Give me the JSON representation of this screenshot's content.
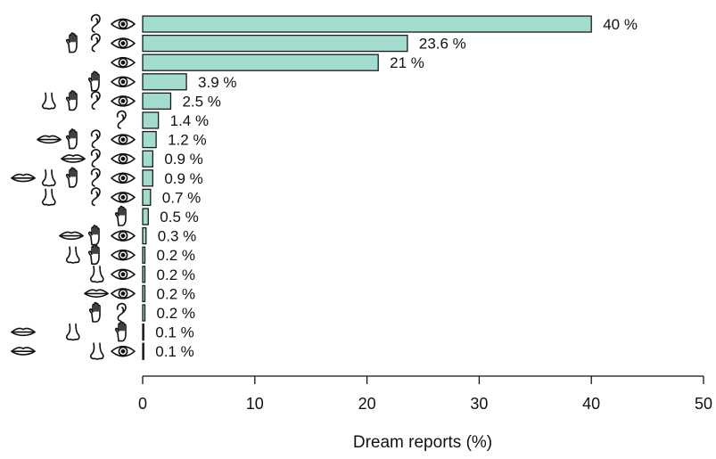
{
  "chart_data": {
    "type": "bar",
    "orientation": "horizontal",
    "xlabel": "Dream reports (%)",
    "xlim": [
      0,
      50
    ],
    "xticks": [
      0,
      10,
      20,
      30,
      40,
      50
    ],
    "bar_color": "#a1dccf",
    "categories": [
      {
        "senses": [
          "ear-icon",
          "eye-icon"
        ],
        "value": 40,
        "label": "40 %"
      },
      {
        "senses": [
          "hand-icon",
          "ear-icon",
          "eye-icon"
        ],
        "value": 23.6,
        "label": "23.6 %"
      },
      {
        "senses": [
          "eye-icon"
        ],
        "value": 21,
        "label": "21 %"
      },
      {
        "senses": [
          "hand-icon",
          "eye-icon"
        ],
        "value": 3.9,
        "label": "3.9 %"
      },
      {
        "senses": [
          "nose-icon",
          "hand-icon",
          "ear-icon",
          "eye-icon"
        ],
        "value": 2.5,
        "label": "2.5 %"
      },
      {
        "senses": [
          "ear-icon"
        ],
        "value": 1.4,
        "label": "1.4 %"
      },
      {
        "senses": [
          "mouth-icon",
          "hand-icon",
          "ear-icon",
          "eye-icon"
        ],
        "value": 1.2,
        "label": "1.2 %"
      },
      {
        "senses": [
          "mouth-icon",
          "ear-icon",
          "eye-icon"
        ],
        "value": 0.9,
        "label": "0.9 %"
      },
      {
        "senses": [
          "mouth-icon",
          "nose-icon",
          "hand-icon",
          "ear-icon",
          "eye-icon"
        ],
        "value": 0.9,
        "label": "0.9 %"
      },
      {
        "senses": [
          "nose-icon",
          "ear-icon",
          "eye-icon"
        ],
        "value": 0.7,
        "label": "0.7 %"
      },
      {
        "senses": [
          "hand-icon"
        ],
        "value": 0.5,
        "label": "0.5 %"
      },
      {
        "senses": [
          "mouth-icon",
          "hand-icon",
          "eye-icon"
        ],
        "value": 0.3,
        "label": "0.3 %"
      },
      {
        "senses": [
          "nose-icon",
          "hand-icon",
          "eye-icon"
        ],
        "value": 0.2,
        "label": "0.2 %"
      },
      {
        "senses": [
          "nose-icon",
          "eye-icon"
        ],
        "value": 0.2,
        "label": "0.2 %"
      },
      {
        "senses": [
          "mouth-icon",
          "eye-icon"
        ],
        "value": 0.2,
        "label": "0.2 %"
      },
      {
        "senses": [
          "hand-icon",
          "ear-icon"
        ],
        "value": 0.2,
        "label": "0.2 %"
      },
      {
        "senses": [
          "mouth-icon",
          "nose-icon",
          "hand-icon"
        ],
        "value": 0.1,
        "label": "0.1 %"
      },
      {
        "senses": [
          "mouth-icon",
          "nose-icon",
          "eye-icon"
        ],
        "value": 0.1,
        "label": "0.1 %"
      }
    ]
  }
}
